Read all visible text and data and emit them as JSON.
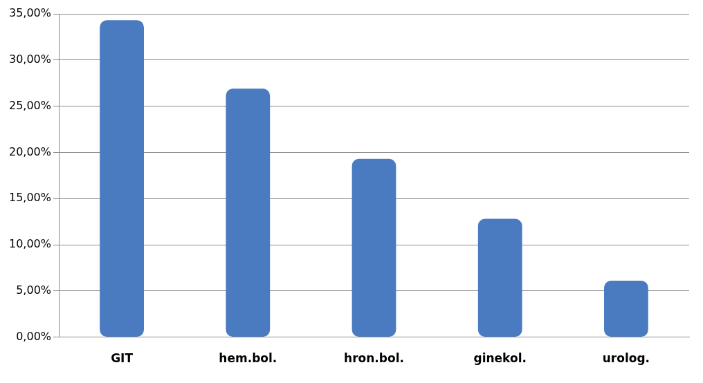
{
  "chart_data": {
    "type": "bar",
    "categories": [
      "GIT",
      "hem.bol.",
      "hron.bol.",
      "ginekol.",
      "urolog."
    ],
    "values": [
      34.3,
      26.9,
      19.3,
      12.8,
      6.1
    ],
    "color": "#4a7bc0",
    "ylim": [
      0,
      35
    ],
    "yticks": [
      {
        "value": 0,
        "label": "0,00%"
      },
      {
        "value": 5,
        "label": "5,00%"
      },
      {
        "value": 10,
        "label": "10,00%"
      },
      {
        "value": 15,
        "label": "15,00%"
      },
      {
        "value": 20,
        "label": "20,00%"
      },
      {
        "value": 25,
        "label": "25,00%"
      },
      {
        "value": 30,
        "label": "30,00%"
      },
      {
        "value": 35,
        "label": "35,00%"
      }
    ],
    "grid": "y",
    "legend": false
  }
}
